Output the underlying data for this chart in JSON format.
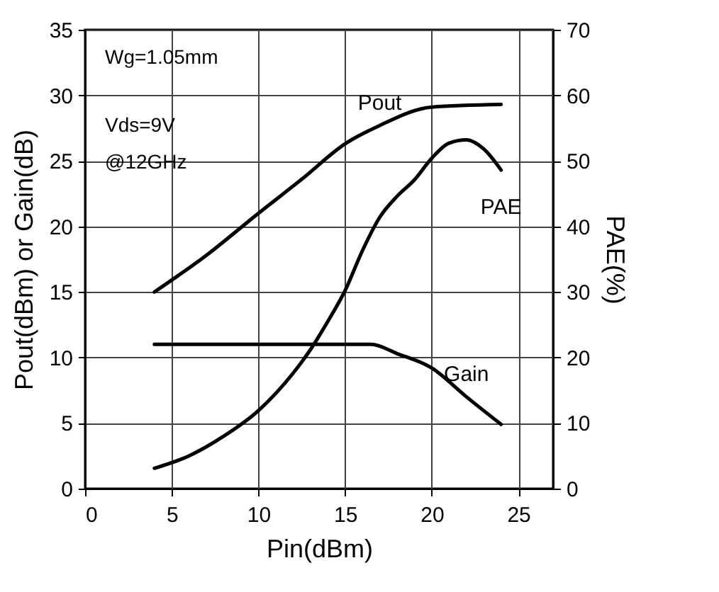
{
  "chart_data": {
    "type": "line",
    "xlabel": "Pin(dBm)",
    "ylabel": "Pout(dBm) or Gain(dB)",
    "y2label": "PAE(%)",
    "xlim": [
      0,
      27
    ],
    "xticks": [
      0,
      5,
      10,
      15,
      20,
      25
    ],
    "ylim": [
      0,
      35
    ],
    "yticks": [
      0,
      5,
      10,
      15,
      20,
      25,
      30,
      35
    ],
    "y2lim": [
      0,
      70
    ],
    "y2ticks": [
      0,
      10,
      20,
      30,
      40,
      50,
      60,
      70
    ],
    "grid": true,
    "legend": false,
    "marker": "none",
    "line_style": "solid",
    "annotations": [
      "Wg=1.05mm",
      "Vds=9V",
      "@12GHz"
    ],
    "series": [
      {
        "name": "Pout",
        "color": "#000000",
        "x": [
          4,
          7,
          10,
          12.5,
          15,
          17,
          20,
          24
        ],
        "values": [
          15,
          17.8,
          21,
          23.6,
          26.3,
          27.7,
          29.1,
          29.3
        ]
      },
      {
        "name": "PAE",
        "color": "#000000",
        "axis": "y2",
        "x": [
          4,
          6,
          8,
          10,
          12,
          13,
          14,
          15,
          16,
          17,
          18,
          19,
          20,
          21,
          22,
          23,
          24
        ],
        "values": [
          3.1,
          5,
          8,
          11.9,
          17.6,
          21.2,
          25.5,
          30.2,
          36.3,
          41.4,
          44.6,
          47.1,
          50.4,
          52.7,
          53.2,
          51.8,
          48.6
        ]
      },
      {
        "name": "Gain",
        "color": "#000000",
        "x": [
          4,
          10,
          16.5,
          18,
          20,
          22,
          24
        ],
        "values": [
          11,
          11,
          11,
          10.3,
          9.2,
          7,
          4.9
        ]
      }
    ]
  }
}
